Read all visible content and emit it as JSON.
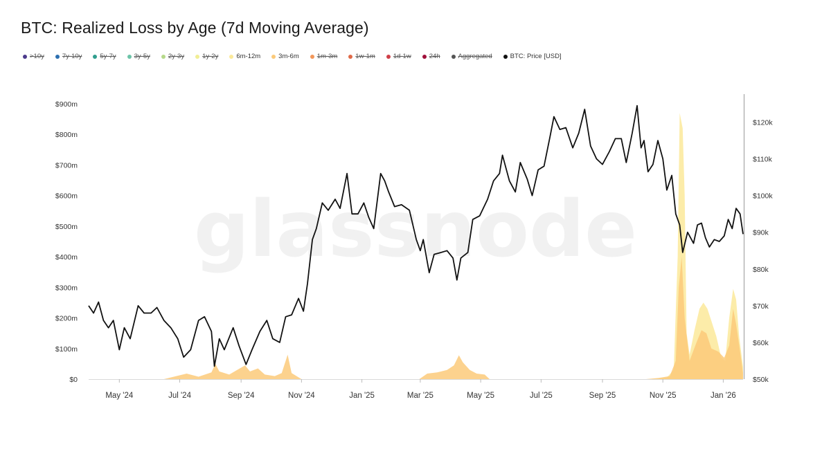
{
  "chart_data": {
    "type": "area",
    "title": "BTC: Realized Loss by Age (7d Moving Average)",
    "watermark": "glassnode",
    "legend": [
      {
        "name": ">10y",
        "color": "#4c3a8c",
        "hidden": true
      },
      {
        "name": "7y-10y",
        "color": "#2c6fb0",
        "hidden": true
      },
      {
        "name": "5y-7y",
        "color": "#2f9e8e",
        "hidden": true
      },
      {
        "name": "3y-5y",
        "color": "#6cc4a8",
        "hidden": true
      },
      {
        "name": "2y-3y",
        "color": "#b6d98a",
        "hidden": true
      },
      {
        "name": "1y-2y",
        "color": "#f1ee95",
        "hidden": true
      },
      {
        "name": "6m-12m",
        "color": "#fbe99a",
        "hidden": false
      },
      {
        "name": "3m-6m",
        "color": "#fbca7a",
        "hidden": false
      },
      {
        "name": "1m-3m",
        "color": "#f2975a",
        "hidden": true
      },
      {
        "name": "1w-1m",
        "color": "#e06a48",
        "hidden": true
      },
      {
        "name": "1d-1w",
        "color": "#cf3f48",
        "hidden": true
      },
      {
        "name": "24h",
        "color": "#a0103a",
        "hidden": true
      },
      {
        "name": "Aggregated",
        "color": "#555555",
        "hidden": true
      },
      {
        "name": "BTC: Price [USD]",
        "color": "#111111",
        "hidden": false
      }
    ],
    "x_range": [
      "2024-03-31",
      "2026-01-21"
    ],
    "x_ticks": [
      {
        "date": "2024-05-01",
        "label": "May '24"
      },
      {
        "date": "2024-07-01",
        "label": "Jul '24"
      },
      {
        "date": "2024-09-01",
        "label": "Sep '24"
      },
      {
        "date": "2024-11-01",
        "label": "Nov '24"
      },
      {
        "date": "2025-01-01",
        "label": "Jan '25"
      },
      {
        "date": "2025-03-01",
        "label": "Mar '25"
      },
      {
        "date": "2025-05-01",
        "label": "May '25"
      },
      {
        "date": "2025-07-01",
        "label": "Jul '25"
      },
      {
        "date": "2025-09-01",
        "label": "Sep '25"
      },
      {
        "date": "2025-11-01",
        "label": "Nov '25"
      },
      {
        "date": "2026-01-01",
        "label": "Jan '26"
      }
    ],
    "y_left": {
      "range": [
        0,
        900000000
      ],
      "ticks": [
        {
          "value": 0,
          "label": "$0"
        },
        {
          "value": 100000000,
          "label": "$100m"
        },
        {
          "value": 200000000,
          "label": "$200m"
        },
        {
          "value": 300000000,
          "label": "$300m"
        },
        {
          "value": 400000000,
          "label": "$400m"
        },
        {
          "value": 500000000,
          "label": "$500m"
        },
        {
          "value": 600000000,
          "label": "$600m"
        },
        {
          "value": 700000000,
          "label": "$700m"
        },
        {
          "value": 800000000,
          "label": "$800m"
        },
        {
          "value": 900000000,
          "label": "$900m"
        }
      ]
    },
    "y_right": {
      "range": [
        50000,
        125000
      ],
      "ticks": [
        {
          "value": 50000,
          "label": "$50k"
        },
        {
          "value": 60000,
          "label": "$60k"
        },
        {
          "value": 70000,
          "label": "$70k"
        },
        {
          "value": 80000,
          "label": "$80k"
        },
        {
          "value": 90000,
          "label": "$90k"
        },
        {
          "value": 100000,
          "label": "$100k"
        },
        {
          "value": 110000,
          "label": "$110k"
        },
        {
          "value": 120000,
          "label": "$120k"
        }
      ]
    },
    "series": [
      {
        "name": "6m-12m",
        "axis": "left",
        "color": "#fbe99a",
        "points": [
          [
            "2024-03-31",
            0
          ],
          [
            "2025-10-20",
            0
          ],
          [
            "2025-11-05",
            5000000
          ],
          [
            "2025-11-12",
            30000000
          ],
          [
            "2025-11-16",
            400000000
          ],
          [
            "2025-11-18",
            870000000
          ],
          [
            "2025-11-21",
            820000000
          ],
          [
            "2025-11-23",
            600000000
          ],
          [
            "2025-11-25",
            150000000
          ],
          [
            "2025-11-28",
            80000000
          ],
          [
            "2025-12-03",
            160000000
          ],
          [
            "2025-12-08",
            230000000
          ],
          [
            "2025-12-12",
            250000000
          ],
          [
            "2025-12-16",
            230000000
          ],
          [
            "2025-12-20",
            190000000
          ],
          [
            "2025-12-25",
            140000000
          ],
          [
            "2025-12-30",
            70000000
          ],
          [
            "2026-01-03",
            60000000
          ],
          [
            "2026-01-07",
            200000000
          ],
          [
            "2026-01-11",
            295000000
          ],
          [
            "2026-01-14",
            260000000
          ],
          [
            "2026-01-17",
            140000000
          ],
          [
            "2026-01-21",
            40000000
          ]
        ]
      },
      {
        "name": "3m-6m",
        "axis": "left",
        "color": "#fbca7a",
        "points": [
          [
            "2024-03-31",
            0
          ],
          [
            "2024-06-15",
            0
          ],
          [
            "2024-06-25",
            8000000
          ],
          [
            "2024-07-08",
            18000000
          ],
          [
            "2024-07-20",
            8000000
          ],
          [
            "2024-08-02",
            22000000
          ],
          [
            "2024-08-06",
            50000000
          ],
          [
            "2024-08-10",
            25000000
          ],
          [
            "2024-08-20",
            15000000
          ],
          [
            "2024-08-28",
            30000000
          ],
          [
            "2024-09-05",
            45000000
          ],
          [
            "2024-09-10",
            25000000
          ],
          [
            "2024-09-18",
            35000000
          ],
          [
            "2024-09-25",
            15000000
          ],
          [
            "2024-10-05",
            10000000
          ],
          [
            "2024-10-12",
            20000000
          ],
          [
            "2024-10-18",
            80000000
          ],
          [
            "2024-10-22",
            20000000
          ],
          [
            "2024-11-01",
            0
          ],
          [
            "2025-02-28",
            0
          ],
          [
            "2025-03-08",
            18000000
          ],
          [
            "2025-03-18",
            22000000
          ],
          [
            "2025-03-28",
            30000000
          ],
          [
            "2025-04-04",
            45000000
          ],
          [
            "2025-04-09",
            78000000
          ],
          [
            "2025-04-13",
            55000000
          ],
          [
            "2025-04-20",
            30000000
          ],
          [
            "2025-04-27",
            18000000
          ],
          [
            "2025-05-05",
            15000000
          ],
          [
            "2025-05-10",
            0
          ],
          [
            "2025-10-15",
            0
          ],
          [
            "2025-10-28",
            4000000
          ],
          [
            "2025-11-08",
            10000000
          ],
          [
            "2025-11-14",
            60000000
          ],
          [
            "2025-11-17",
            300000000
          ],
          [
            "2025-11-20",
            400000000
          ],
          [
            "2025-11-23",
            200000000
          ],
          [
            "2025-11-28",
            60000000
          ],
          [
            "2025-12-05",
            120000000
          ],
          [
            "2025-12-10",
            160000000
          ],
          [
            "2025-12-15",
            150000000
          ],
          [
            "2025-12-20",
            100000000
          ],
          [
            "2025-12-27",
            90000000
          ],
          [
            "2026-01-02",
            70000000
          ],
          [
            "2026-01-07",
            110000000
          ],
          [
            "2026-01-11",
            230000000
          ],
          [
            "2026-01-14",
            180000000
          ],
          [
            "2026-01-18",
            90000000
          ],
          [
            "2026-01-21",
            20000000
          ]
        ]
      },
      {
        "name": "BTC: Price [USD]",
        "axis": "right",
        "color": "#111111",
        "points": [
          [
            "2024-03-31",
            70000
          ],
          [
            "2024-04-05",
            68000
          ],
          [
            "2024-04-10",
            71000
          ],
          [
            "2024-04-15",
            66000
          ],
          [
            "2024-04-20",
            64000
          ],
          [
            "2024-04-25",
            66000
          ],
          [
            "2024-05-01",
            58000
          ],
          [
            "2024-05-06",
            64000
          ],
          [
            "2024-05-12",
            61000
          ],
          [
            "2024-05-20",
            70000
          ],
          [
            "2024-05-26",
            68000
          ],
          [
            "2024-06-02",
            68000
          ],
          [
            "2024-06-08",
            69500
          ],
          [
            "2024-06-15",
            66000
          ],
          [
            "2024-06-22",
            64000
          ],
          [
            "2024-06-29",
            61000
          ],
          [
            "2024-07-05",
            56000
          ],
          [
            "2024-07-12",
            58000
          ],
          [
            "2024-07-20",
            66000
          ],
          [
            "2024-07-26",
            67000
          ],
          [
            "2024-08-02",
            63000
          ],
          [
            "2024-08-05",
            53500
          ],
          [
            "2024-08-10",
            61000
          ],
          [
            "2024-08-15",
            58000
          ],
          [
            "2024-08-24",
            64000
          ],
          [
            "2024-08-30",
            59000
          ],
          [
            "2024-09-06",
            54000
          ],
          [
            "2024-09-12",
            58000
          ],
          [
            "2024-09-20",
            63000
          ],
          [
            "2024-09-27",
            66000
          ],
          [
            "2024-10-03",
            61000
          ],
          [
            "2024-10-10",
            60000
          ],
          [
            "2024-10-16",
            67000
          ],
          [
            "2024-10-22",
            67500
          ],
          [
            "2024-10-29",
            72000
          ],
          [
            "2024-11-03",
            68500
          ],
          [
            "2024-11-07",
            76000
          ],
          [
            "2024-11-12",
            88000
          ],
          [
            "2024-11-16",
            91000
          ],
          [
            "2024-11-22",
            98000
          ],
          [
            "2024-11-28",
            96000
          ],
          [
            "2024-12-05",
            99000
          ],
          [
            "2024-12-10",
            96500
          ],
          [
            "2024-12-17",
            106000
          ],
          [
            "2024-12-22",
            95000
          ],
          [
            "2024-12-28",
            95000
          ],
          [
            "2025-01-03",
            98000
          ],
          [
            "2025-01-08",
            94000
          ],
          [
            "2025-01-13",
            91000
          ],
          [
            "2025-01-20",
            106000
          ],
          [
            "2025-01-24",
            104000
          ],
          [
            "2025-01-28",
            101000
          ],
          [
            "2025-02-03",
            97000
          ],
          [
            "2025-02-10",
            97500
          ],
          [
            "2025-02-18",
            96000
          ],
          [
            "2025-02-25",
            88000
          ],
          [
            "2025-03-01",
            85000
          ],
          [
            "2025-03-04",
            88000
          ],
          [
            "2025-03-10",
            79000
          ],
          [
            "2025-03-15",
            84000
          ],
          [
            "2025-03-22",
            84500
          ],
          [
            "2025-03-28",
            85000
          ],
          [
            "2025-04-03",
            83000
          ],
          [
            "2025-04-07",
            77000
          ],
          [
            "2025-04-11",
            83000
          ],
          [
            "2025-04-18",
            84500
          ],
          [
            "2025-04-23",
            93500
          ],
          [
            "2025-04-30",
            94500
          ],
          [
            "2025-05-08",
            99000
          ],
          [
            "2025-05-14",
            104000
          ],
          [
            "2025-05-20",
            106000
          ],
          [
            "2025-05-23",
            111000
          ],
          [
            "2025-05-30",
            104000
          ],
          [
            "2025-06-05",
            101000
          ],
          [
            "2025-06-10",
            109000
          ],
          [
            "2025-06-17",
            104500
          ],
          [
            "2025-06-22",
            100000
          ],
          [
            "2025-06-28",
            107000
          ],
          [
            "2025-07-04",
            108000
          ],
          [
            "2025-07-10",
            116000
          ],
          [
            "2025-07-14",
            121500
          ],
          [
            "2025-07-20",
            118000
          ],
          [
            "2025-07-26",
            118500
          ],
          [
            "2025-08-02",
            113000
          ],
          [
            "2025-08-08",
            117000
          ],
          [
            "2025-08-14",
            123500
          ],
          [
            "2025-08-20",
            113500
          ],
          [
            "2025-08-26",
            110000
          ],
          [
            "2025-09-01",
            108500
          ],
          [
            "2025-09-08",
            112000
          ],
          [
            "2025-09-14",
            115500
          ],
          [
            "2025-09-20",
            115500
          ],
          [
            "2025-09-25",
            109000
          ],
          [
            "2025-10-01",
            117000
          ],
          [
            "2025-10-06",
            124500
          ],
          [
            "2025-10-10",
            113000
          ],
          [
            "2025-10-13",
            115000
          ],
          [
            "2025-10-17",
            106500
          ],
          [
            "2025-10-22",
            108500
          ],
          [
            "2025-10-27",
            115000
          ],
          [
            "2025-11-01",
            110000
          ],
          [
            "2025-11-05",
            101500
          ],
          [
            "2025-11-10",
            105500
          ],
          [
            "2025-11-14",
            95000
          ],
          [
            "2025-11-18",
            92000
          ],
          [
            "2025-11-21",
            84500
          ],
          [
            "2025-11-26",
            90000
          ],
          [
            "2025-12-02",
            87000
          ],
          [
            "2025-12-06",
            92000
          ],
          [
            "2025-12-10",
            92500
          ],
          [
            "2025-12-14",
            88500
          ],
          [
            "2025-12-18",
            86000
          ],
          [
            "2025-12-23",
            88000
          ],
          [
            "2025-12-28",
            87500
          ],
          [
            "2026-01-02",
            89000
          ],
          [
            "2026-01-06",
            93500
          ],
          [
            "2026-01-10",
            91000
          ],
          [
            "2026-01-14",
            96500
          ],
          [
            "2026-01-18",
            95000
          ],
          [
            "2026-01-21",
            89500
          ]
        ]
      }
    ]
  }
}
